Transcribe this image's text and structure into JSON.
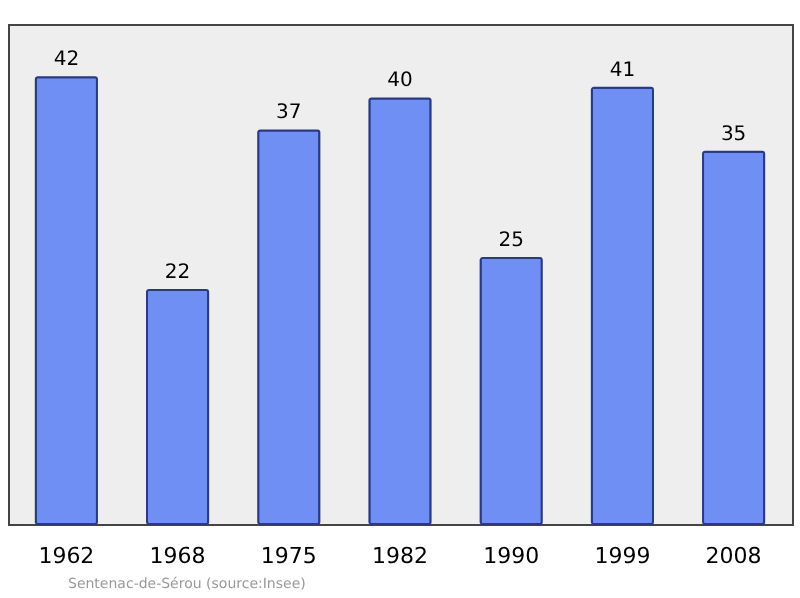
{
  "chart_data": {
    "type": "bar",
    "categories": [
      "1962",
      "1968",
      "1975",
      "1982",
      "1990",
      "1999",
      "2008"
    ],
    "values": [
      42,
      22,
      37,
      40,
      25,
      41,
      35
    ],
    "color": "#6f8ff5",
    "ylim": [
      0,
      47
    ],
    "data_labels": true,
    "annotations": [
      "Sentenac-de-Sérou   (source:Insee)"
    ]
  }
}
